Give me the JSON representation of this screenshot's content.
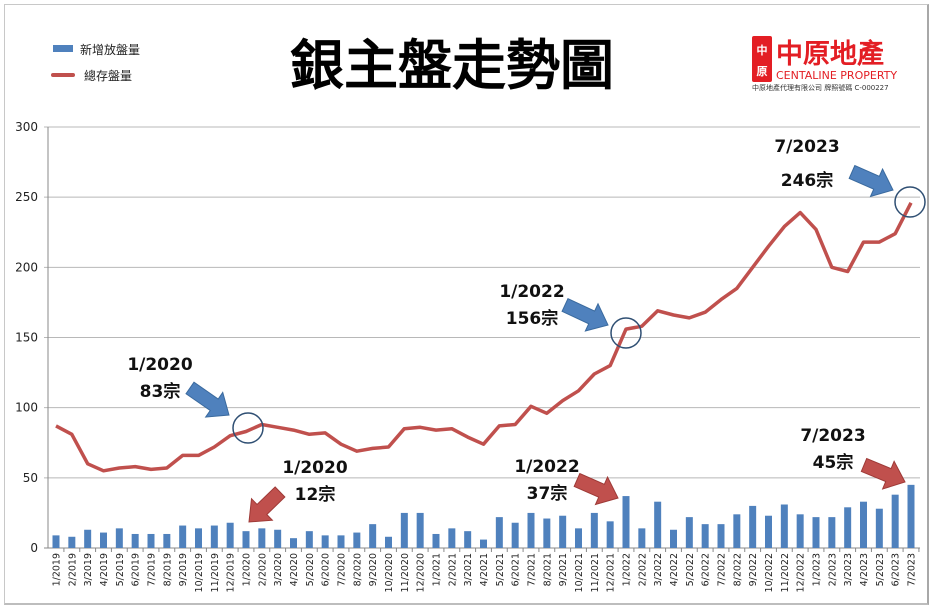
{
  "chart_data": {
    "type": "bar+line",
    "title": "銀主盤走勢圖",
    "ylim": [
      0,
      300
    ],
    "yticks": [
      0,
      50,
      100,
      150,
      200,
      250,
      300
    ],
    "grid": true,
    "legend_position": "top-left",
    "categories": [
      "1/2019",
      "2/2019",
      "3/2019",
      "4/2019",
      "5/2019",
      "6/2019",
      "7/2019",
      "8/2019",
      "9/2019",
      "10/2019",
      "11/2019",
      "12/2019",
      "1/2020",
      "2/2020",
      "3/2020",
      "4/2020",
      "5/2020",
      "6/2020",
      "7/2020",
      "8/2020",
      "9/2020",
      "10/2020",
      "11/2020",
      "12/2020",
      "1/2021",
      "2/2021",
      "3/2021",
      "4/2021",
      "5/2021",
      "6/2021",
      "7/2021",
      "8/2021",
      "9/2021",
      "10/2021",
      "11/2021",
      "12/2021",
      "1/2022",
      "2/2022",
      "3/2022",
      "4/2022",
      "5/2022",
      "6/2022",
      "7/2022",
      "8/2022",
      "9/2022",
      "10/2022",
      "11/2022",
      "12/2022",
      "1/2023",
      "2/2023",
      "3/2023",
      "4/2023",
      "5/2023",
      "6/2023",
      "7/2023"
    ],
    "series": [
      {
        "name": "新增放盤量",
        "type": "bar",
        "color": "#4f81bd",
        "values": [
          9,
          8,
          13,
          11,
          14,
          10,
          10,
          10,
          16,
          14,
          16,
          18,
          12,
          14,
          13,
          7,
          12,
          9,
          9,
          11,
          17,
          8,
          25,
          25,
          10,
          14,
          12,
          6,
          22,
          18,
          25,
          21,
          23,
          14,
          25,
          19,
          37,
          14,
          33,
          13,
          22,
          17,
          17,
          24,
          30,
          23,
          31,
          24,
          22,
          22,
          29,
          33,
          28,
          38,
          45
        ]
      },
      {
        "name": "總存盤量",
        "type": "line",
        "color": "#c0504d",
        "values": [
          87,
          81,
          60,
          55,
          57,
          58,
          56,
          57,
          66,
          66,
          72,
          80,
          83,
          88,
          86,
          84,
          81,
          82,
          74,
          69,
          71,
          72,
          85,
          86,
          84,
          85,
          79,
          74,
          87,
          88,
          101,
          96,
          105,
          112,
          124,
          130,
          156,
          158,
          169,
          166,
          164,
          168,
          177,
          185,
          200,
          215,
          229,
          239,
          227,
          200,
          197,
          218,
          218,
          224,
          246
        ]
      }
    ],
    "annotations": [
      {
        "date": "1/2020",
        "value": "83宗",
        "arrow_color": "#4f81bd"
      },
      {
        "date": "1/2020",
        "value": "12宗",
        "arrow_color": "#c0504d"
      },
      {
        "date": "1/2022",
        "value": "156宗",
        "arrow_color": "#4f81bd"
      },
      {
        "date": "1/2022",
        "value": "37宗",
        "arrow_color": "#c0504d"
      },
      {
        "date": "7/2023",
        "value": "246宗",
        "arrow_color": "#4f81bd"
      },
      {
        "date": "7/2023",
        "value": "45宗",
        "arrow_color": "#c0504d"
      }
    ]
  },
  "logo": {
    "seal_text": "中原",
    "name_zh": "中原地產",
    "name_en": "CENTALINE PROPERTY",
    "license": "中原地產代理有限公司  牌照號碼 C-000227",
    "color": "#e31e24"
  }
}
